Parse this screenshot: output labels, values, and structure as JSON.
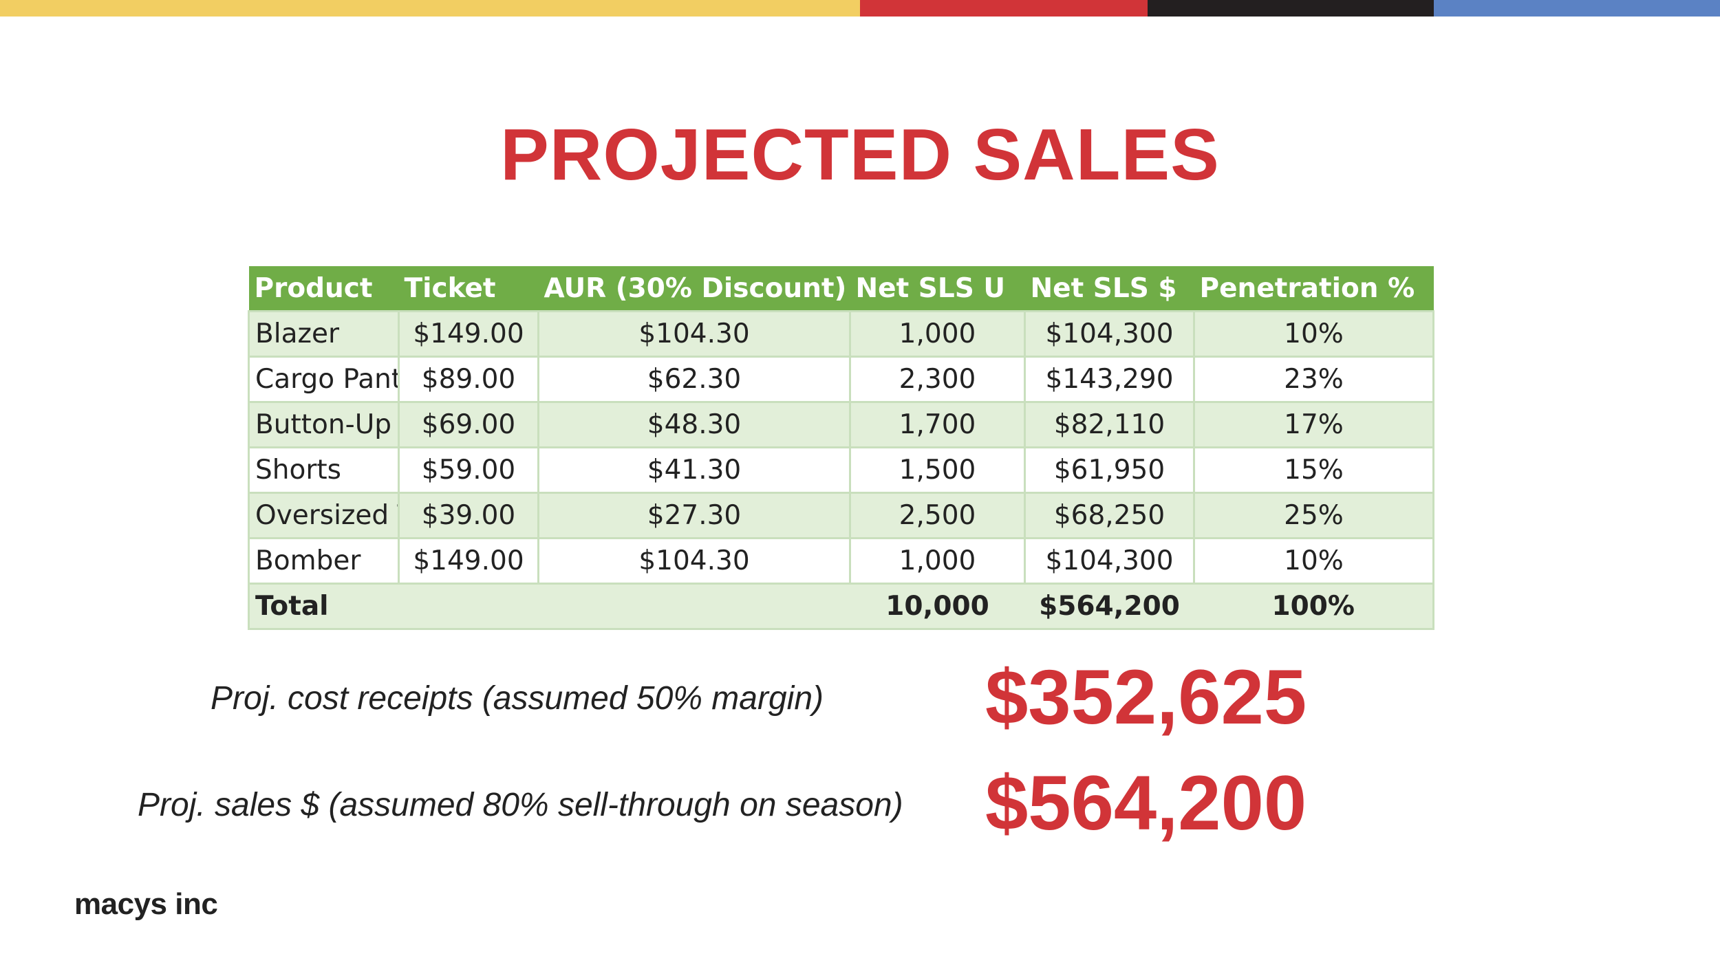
{
  "top_bar_colors": [
    "#f2ce62",
    "#d13438",
    "#231f20",
    "#5b82c4"
  ],
  "title": "PROJECTED SALES",
  "table": {
    "headers": [
      "Product",
      "Ticket",
      "AUR (30% Discount)",
      "Net SLS U",
      "Net SLS $",
      "Penetration %"
    ],
    "rows": [
      [
        "Blazer",
        "$149.00",
        "$104.30",
        "1,000",
        "$104,300",
        "10%"
      ],
      [
        "Cargo Pant",
        "$89.00",
        "$62.30",
        "2,300",
        "$143,290",
        "23%"
      ],
      [
        "Button-Up",
        "$69.00",
        "$48.30",
        "1,700",
        "$82,110",
        "17%"
      ],
      [
        "Shorts",
        "$59.00",
        "$41.30",
        "1,500",
        "$61,950",
        "15%"
      ],
      [
        "Oversized T",
        "$39.00",
        "$27.30",
        "2,500",
        "$68,250",
        "25%"
      ],
      [
        "Bomber",
        "$149.00",
        "$104.30",
        "1,000",
        "$104,300",
        "10%"
      ]
    ],
    "total": [
      "Total",
      "",
      "",
      "10,000",
      "$564,200",
      "100%"
    ],
    "header_color": "#70ad47",
    "band_color": "#e2efd9"
  },
  "metrics": [
    {
      "label": "Proj. cost receipts (assumed 50% margin)",
      "value": "$352,625"
    },
    {
      "label": "Proj. sales $ (assumed 80% sell-through on season)",
      "value": "$564,200"
    }
  ],
  "accent_color": "#d13438",
  "logo": "macys inc"
}
